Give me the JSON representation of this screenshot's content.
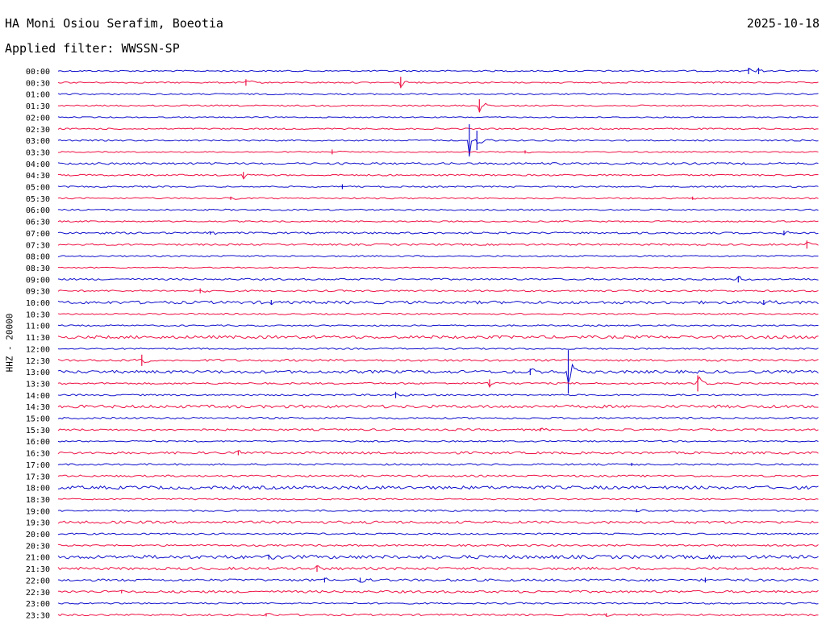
{
  "header": {
    "station": "HA Moni Osiou Serafim, Boeotia",
    "date": "2025-10-18",
    "filter": "Applied filter: WWSSN-SP"
  },
  "channel_label": "HHZ - 20000",
  "colors": {
    "even_rows": "#1010cc",
    "odd_rows": "#ee1144",
    "text": "#000000"
  },
  "chart_data": {
    "type": "line",
    "subtype": "helicorder",
    "minutes_per_line": 30,
    "row_labels": [
      "00:00",
      "00:30",
      "01:00",
      "01:30",
      "02:00",
      "02:30",
      "03:00",
      "03:30",
      "04:00",
      "04:30",
      "05:00",
      "05:30",
      "06:00",
      "06:30",
      "07:00",
      "07:30",
      "08:00",
      "08:30",
      "09:00",
      "09:30",
      "10:00",
      "10:30",
      "11:00",
      "11:30",
      "12:00",
      "12:30",
      "13:00",
      "13:30",
      "14:00",
      "14:30",
      "15:00",
      "15:30",
      "16:00",
      "16:30",
      "17:00",
      "17:30",
      "18:00",
      "18:30",
      "19:00",
      "19:30",
      "20:00",
      "20:30",
      "21:00",
      "21:30",
      "22:00",
      "22:30",
      "23:00",
      "23:30"
    ],
    "noise_level": [
      1,
      1,
      1,
      1,
      0.8,
      1,
      1,
      0.8,
      1.4,
      1.1,
      1,
      1,
      1,
      1,
      1.3,
      1.2,
      1,
      0.8,
      1.2,
      1.2,
      2,
      1,
      1,
      2,
      1,
      1.5,
      2,
      1.2,
      1.1,
      2,
      1.2,
      1.3,
      1,
      1.6,
      1.2,
      1.3,
      2.2,
      1,
      1.2,
      1.8,
      1.1,
      1.2,
      2.4,
      1.8,
      1.6,
      1.6,
      1.1,
      1.3
    ],
    "events": [
      {
        "row": 0,
        "minute": 27.2,
        "amplitude": 4
      },
      {
        "row": 0,
        "minute": 27.6,
        "amplitude": 4
      },
      {
        "row": 1,
        "minute": 7.4,
        "amplitude": 4
      },
      {
        "row": 1,
        "minute": 13.5,
        "amplitude": 7
      },
      {
        "row": 3,
        "minute": 16.6,
        "amplitude": 8
      },
      {
        "row": 6,
        "minute": 16.2,
        "amplitude": 20
      },
      {
        "row": 6,
        "minute": 16.5,
        "amplitude": 12
      },
      {
        "row": 7,
        "minute": 10.8,
        "amplitude": 3
      },
      {
        "row": 7,
        "minute": 18.4,
        "amplitude": 2
      },
      {
        "row": 9,
        "minute": 7.3,
        "amplitude": 4
      },
      {
        "row": 10,
        "minute": 11.2,
        "amplitude": 3
      },
      {
        "row": 11,
        "minute": 6.8,
        "amplitude": 2
      },
      {
        "row": 11,
        "minute": 25.0,
        "amplitude": 2
      },
      {
        "row": 14,
        "minute": 6.0,
        "amplitude": 2
      },
      {
        "row": 14,
        "minute": 28.6,
        "amplitude": 3
      },
      {
        "row": 15,
        "minute": 29.5,
        "amplitude": 5
      },
      {
        "row": 18,
        "minute": 26.8,
        "amplitude": 4
      },
      {
        "row": 19,
        "minute": 5.6,
        "amplitude": 3
      },
      {
        "row": 20,
        "minute": 8.4,
        "amplitude": 3
      },
      {
        "row": 20,
        "minute": 27.8,
        "amplitude": 3
      },
      {
        "row": 25,
        "minute": 3.3,
        "amplitude": 7
      },
      {
        "row": 26,
        "minute": 18.6,
        "amplitude": 4
      },
      {
        "row": 26,
        "minute": 20.1,
        "amplitude": 27
      },
      {
        "row": 27,
        "minute": 17.0,
        "amplitude": 5
      },
      {
        "row": 27,
        "minute": 25.2,
        "amplitude": 10
      },
      {
        "row": 28,
        "minute": 13.3,
        "amplitude": 4
      },
      {
        "row": 31,
        "minute": 19.0,
        "amplitude": 2
      },
      {
        "row": 33,
        "minute": 7.1,
        "amplitude": 3
      },
      {
        "row": 34,
        "minute": 22.6,
        "amplitude": 2
      },
      {
        "row": 38,
        "minute": 22.8,
        "amplitude": 2
      },
      {
        "row": 42,
        "minute": 8.3,
        "amplitude": 3
      },
      {
        "row": 43,
        "minute": 10.2,
        "amplitude": 4
      },
      {
        "row": 44,
        "minute": 10.5,
        "amplitude": 3
      },
      {
        "row": 44,
        "minute": 11.9,
        "amplitude": 3
      },
      {
        "row": 44,
        "minute": 25.5,
        "amplitude": 3
      },
      {
        "row": 45,
        "minute": 2.5,
        "amplitude": 2
      },
      {
        "row": 47,
        "minute": 8.2,
        "amplitude": 2
      },
      {
        "row": 47,
        "minute": 21.6,
        "amplitude": 2
      }
    ],
    "title": "HA Moni Osiou Serafim, Boeotia",
    "ylabel": "HHZ - 20000",
    "grid": false
  }
}
